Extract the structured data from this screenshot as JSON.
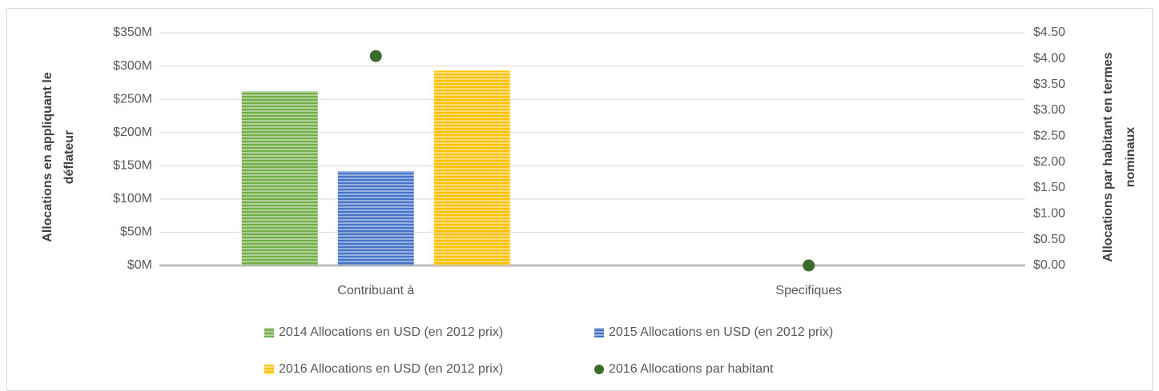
{
  "chart_data": {
    "type": "bar",
    "categories": [
      "Contribuant à",
      "Specifiques"
    ],
    "ylabel": [
      "Allocations en appliquant le",
      "déflateur"
    ],
    "y2label": [
      "Allocations par habitant en termes",
      "nominaux"
    ],
    "series": [
      {
        "name": "2014 Allocations en USD (en 2012 prix)",
        "color": "#70ad47",
        "values": [
          262,
          0
        ]
      },
      {
        "name": "2015 Allocations en USD (en 2012 prix)",
        "color": "#4472c4",
        "values": [
          142,
          0
        ]
      },
      {
        "name": "2016 Allocations en USD (en 2012 prix)",
        "color": "#ffc000",
        "values": [
          293,
          0
        ]
      },
      {
        "name": "2016 Allocations par habitant",
        "color": "#3b6b2a",
        "type": "scatter",
        "axis": "y2",
        "values": [
          4.05,
          0
        ]
      }
    ],
    "ylim": [
      0,
      350
    ],
    "yticks": [
      {
        "value": 0,
        "label": "$0M"
      },
      {
        "value": 50,
        "label": "$50M"
      },
      {
        "value": 100,
        "label": "$100M"
      },
      {
        "value": 150,
        "label": "$150M"
      },
      {
        "value": 200,
        "label": "$200M"
      },
      {
        "value": 250,
        "label": "$250M"
      },
      {
        "value": 300,
        "label": "$300M"
      },
      {
        "value": 350,
        "label": "$350M"
      }
    ],
    "y2lim": [
      0,
      4.5
    ],
    "y2ticks": [
      {
        "value": 0,
        "label": "$0.00"
      },
      {
        "value": 0.5,
        "label": "$0.50"
      },
      {
        "value": 1,
        "label": "$1.00"
      },
      {
        "value": 1.5,
        "label": "$1.50"
      },
      {
        "value": 2,
        "label": "$2.00"
      },
      {
        "value": 2.5,
        "label": "$2.50"
      },
      {
        "value": 3,
        "label": "$3.00"
      },
      {
        "value": 3.5,
        "label": "$3.50"
      },
      {
        "value": 4,
        "label": "$4.00"
      },
      {
        "value": 4.5,
        "label": "$4.50"
      }
    ],
    "grid": true,
    "legend": "bottom"
  }
}
